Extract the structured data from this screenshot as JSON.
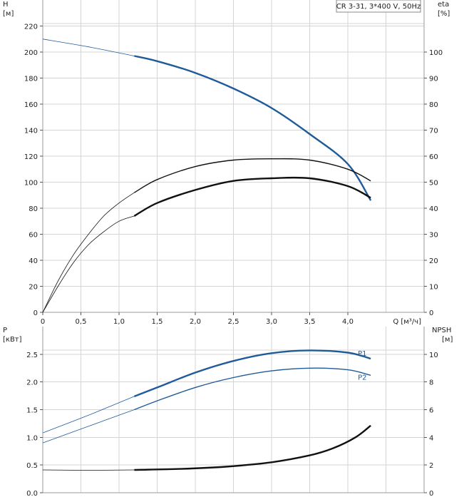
{
  "legend_box": {
    "text": "CR 3-31, 3*400 V, 50Hz"
  },
  "top_plot": {
    "left_axis": {
      "name": "H",
      "unit": "[м]",
      "range": [
        0,
        240
      ],
      "ticks": [
        0,
        20,
        40,
        60,
        80,
        100,
        120,
        140,
        160,
        180,
        200,
        220
      ]
    },
    "right_axis": {
      "name": "eta",
      "unit": "[%]",
      "range": [
        0,
        120
      ],
      "ticks": [
        0,
        10,
        20,
        30,
        40,
        50,
        60,
        70,
        80,
        90,
        100
      ]
    },
    "x_axis": {
      "label": "Q [м³/ч]",
      "range": [
        0,
        5.0
      ],
      "ticks": [
        0,
        0.5,
        1.0,
        1.5,
        2.0,
        2.5,
        3.0,
        3.5,
        4.0
      ],
      "tick_labels": [
        "0",
        "0,5",
        "1,0",
        "1,5",
        "2,0",
        "2,5",
        "3,0",
        "3,5",
        "4,0"
      ]
    }
  },
  "bottom_plot": {
    "left_axis": {
      "name": "P",
      "unit": "[кВт]",
      "range": [
        0,
        3.0
      ],
      "ticks": [
        0.0,
        0.5,
        1.0,
        1.5,
        2.0,
        2.5
      ],
      "tick_labels": [
        "0.0",
        "0.5",
        "1.0",
        "1.5",
        "2.0",
        "2.5"
      ]
    },
    "right_axis": {
      "name": "NPSH",
      "unit": "[м]",
      "range": [
        0,
        12
      ],
      "ticks": [
        0,
        2,
        4,
        6,
        8,
        10
      ]
    }
  },
  "colors": {
    "blue": "#1f5a99",
    "black": "#111111",
    "grid": "#d4d4d4"
  },
  "chart_data": [
    {
      "type": "line",
      "axes": "H [м] & eta [%] vs Q [м³/ч]",
      "xlim": [
        0,
        5.0
      ],
      "ylim_left": [
        0,
        240
      ],
      "ylim_right": [
        0,
        120
      ],
      "series": [
        {
          "axis": "left",
          "color": "#1f5a99",
          "thin": {
            "x": [
              0,
              0.6,
              1.2
            ],
            "y": [
              210,
              204,
              197
            ]
          },
          "bold": {
            "x": [
              1.2,
              1.5,
              2.0,
              2.5,
              3.0,
              3.5,
              4.0,
              4.3
            ],
            "y": [
              197,
              193,
              184,
              172,
              157,
              137,
              114,
              86
            ]
          }
        },
        {
          "axis": "right",
          "color": "#111111",
          "thin": {
            "x": [
              0,
              0.2,
              0.4,
              0.6,
              0.8,
              1.0,
              1.2
            ],
            "y": [
              0,
              12,
              22,
              30,
              37,
              42,
              46
            ]
          },
          "bold": {
            "x": [
              1.2,
              1.5,
              2.0,
              2.5,
              3.0,
              3.5,
              4.0,
              4.3
            ],
            "y": [
              46,
              51,
              56,
              58.5,
              59,
              58.5,
              55,
              50.5
            ]
          }
        },
        {
          "axis": "right",
          "color": "#111111",
          "thin": {
            "x": [
              0,
              0.2,
              0.4,
              0.6,
              0.8,
              1.0,
              1.2
            ],
            "y": [
              0,
              10,
              19,
              26,
              31,
              35,
              37
            ]
          },
          "bold": {
            "x": [
              1.2,
              1.5,
              2.0,
              2.5,
              3.0,
              3.5,
              4.0,
              4.3
            ],
            "y": [
              37,
              42,
              47,
              50.5,
              51.5,
              51.5,
              48.5,
              44
            ]
          }
        }
      ]
    },
    {
      "type": "line",
      "axes": "P [кВт] & NPSH [м] vs Q [м³/ч]",
      "xlim": [
        0,
        5.0
      ],
      "ylim_left": [
        0,
        3.0
      ],
      "ylim_right": [
        0,
        12
      ],
      "series": [
        {
          "name": "P1",
          "axis": "left",
          "color": "#1f5a99",
          "thin": {
            "x": [
              0,
              0.6,
              1.2
            ],
            "y": [
              1.08,
              1.4,
              1.74
            ]
          },
          "bold": {
            "x": [
              1.2,
              1.5,
              2.0,
              2.5,
              3.0,
              3.5,
              4.0,
              4.3
            ],
            "y": [
              1.74,
              1.9,
              2.17,
              2.38,
              2.52,
              2.57,
              2.53,
              2.42
            ]
          }
        },
        {
          "name": "P2",
          "axis": "left",
          "color": "#1f5a99",
          "thin": {
            "x": [
              0,
              0.6,
              1.2
            ],
            "y": [
              0.9,
              1.2,
              1.5
            ]
          },
          "bold": {
            "x": [
              1.2,
              1.5,
              2.0,
              2.5,
              3.0,
              3.5,
              4.0,
              4.3
            ],
            "y": [
              1.5,
              1.66,
              1.9,
              2.08,
              2.2,
              2.25,
              2.22,
              2.12
            ]
          }
        },
        {
          "axis": "right",
          "color": "#111111",
          "thin": {
            "x": [
              0,
              0.6,
              1.2
            ],
            "y": [
              1.65,
              1.62,
              1.65
            ]
          },
          "bold": {
            "x": [
              1.2,
              1.8,
              2.4,
              3.0,
              3.5,
              3.8,
              4.1,
              4.3
            ],
            "y": [
              1.65,
              1.72,
              1.88,
              2.2,
              2.7,
              3.2,
              4.0,
              4.85
            ]
          }
        }
      ]
    }
  ]
}
